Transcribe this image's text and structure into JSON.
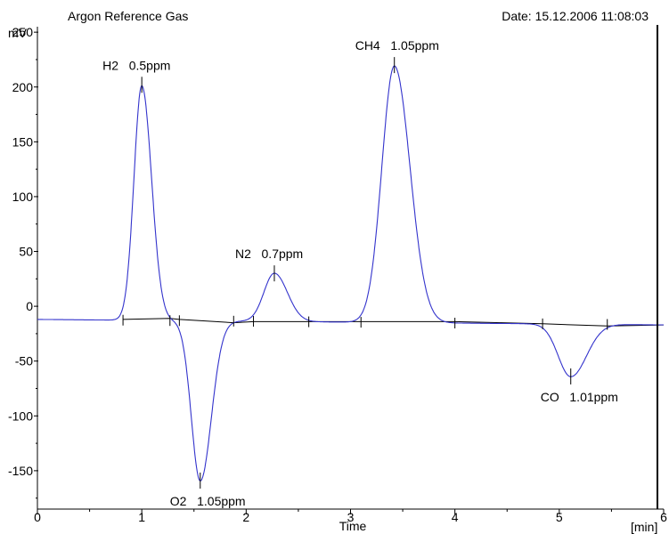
{
  "chart_data": {
    "type": "line",
    "title": "Argon Reference Gas",
    "date_label": "Date:  15.12.2006  11:08:03",
    "ylabel": "mV",
    "xlabel": "Time",
    "xunit": "[min]",
    "xlim": [
      0,
      6
    ],
    "ylim": [
      -185,
      255
    ],
    "x_ticks": [
      0,
      1,
      2,
      3,
      4,
      5,
      6
    ],
    "y_ticks": [
      250,
      200,
      150,
      100,
      50,
      0,
      -50,
      -100,
      -150
    ],
    "grid": false,
    "series_color": "#3333cc",
    "baseline_color": "#000000",
    "base_offset": -12,
    "peaks": [
      {
        "label": "H2   0.5ppm",
        "t": 1.0,
        "height": 202,
        "sigma": 0.075,
        "base": -12,
        "start": 0.82,
        "end": 1.27
      },
      {
        "label": "O2   1.05ppm",
        "t": 1.56,
        "height": -159,
        "sigma": 0.085,
        "base": -13,
        "start": 1.36,
        "end": 1.88
      },
      {
        "label": "N2   0.7ppm",
        "t": 2.27,
        "height": 30,
        "sigma": 0.1,
        "base": -14,
        "start": 2.07,
        "end": 2.6
      },
      {
        "label": "CH4   1.05ppm",
        "t": 3.42,
        "height": 220,
        "sigma": 0.12,
        "base": -14,
        "start": 3.1,
        "end": 4.0
      },
      {
        "label": "CO   1.01ppm",
        "t": 5.11,
        "height": -64,
        "sigma": 0.12,
        "base": -16,
        "start": 4.84,
        "end": 5.46
      }
    ],
    "baseline_points": [
      [
        0.82,
        -12
      ],
      [
        1.27,
        -11
      ],
      [
        1.36,
        -12
      ],
      [
        1.88,
        -15
      ],
      [
        2.07,
        -14
      ],
      [
        2.6,
        -14
      ],
      [
        3.1,
        -14
      ],
      [
        4.0,
        -14
      ],
      [
        4.84,
        -16
      ],
      [
        5.46,
        -18
      ],
      [
        6.0,
        -17
      ]
    ]
  }
}
